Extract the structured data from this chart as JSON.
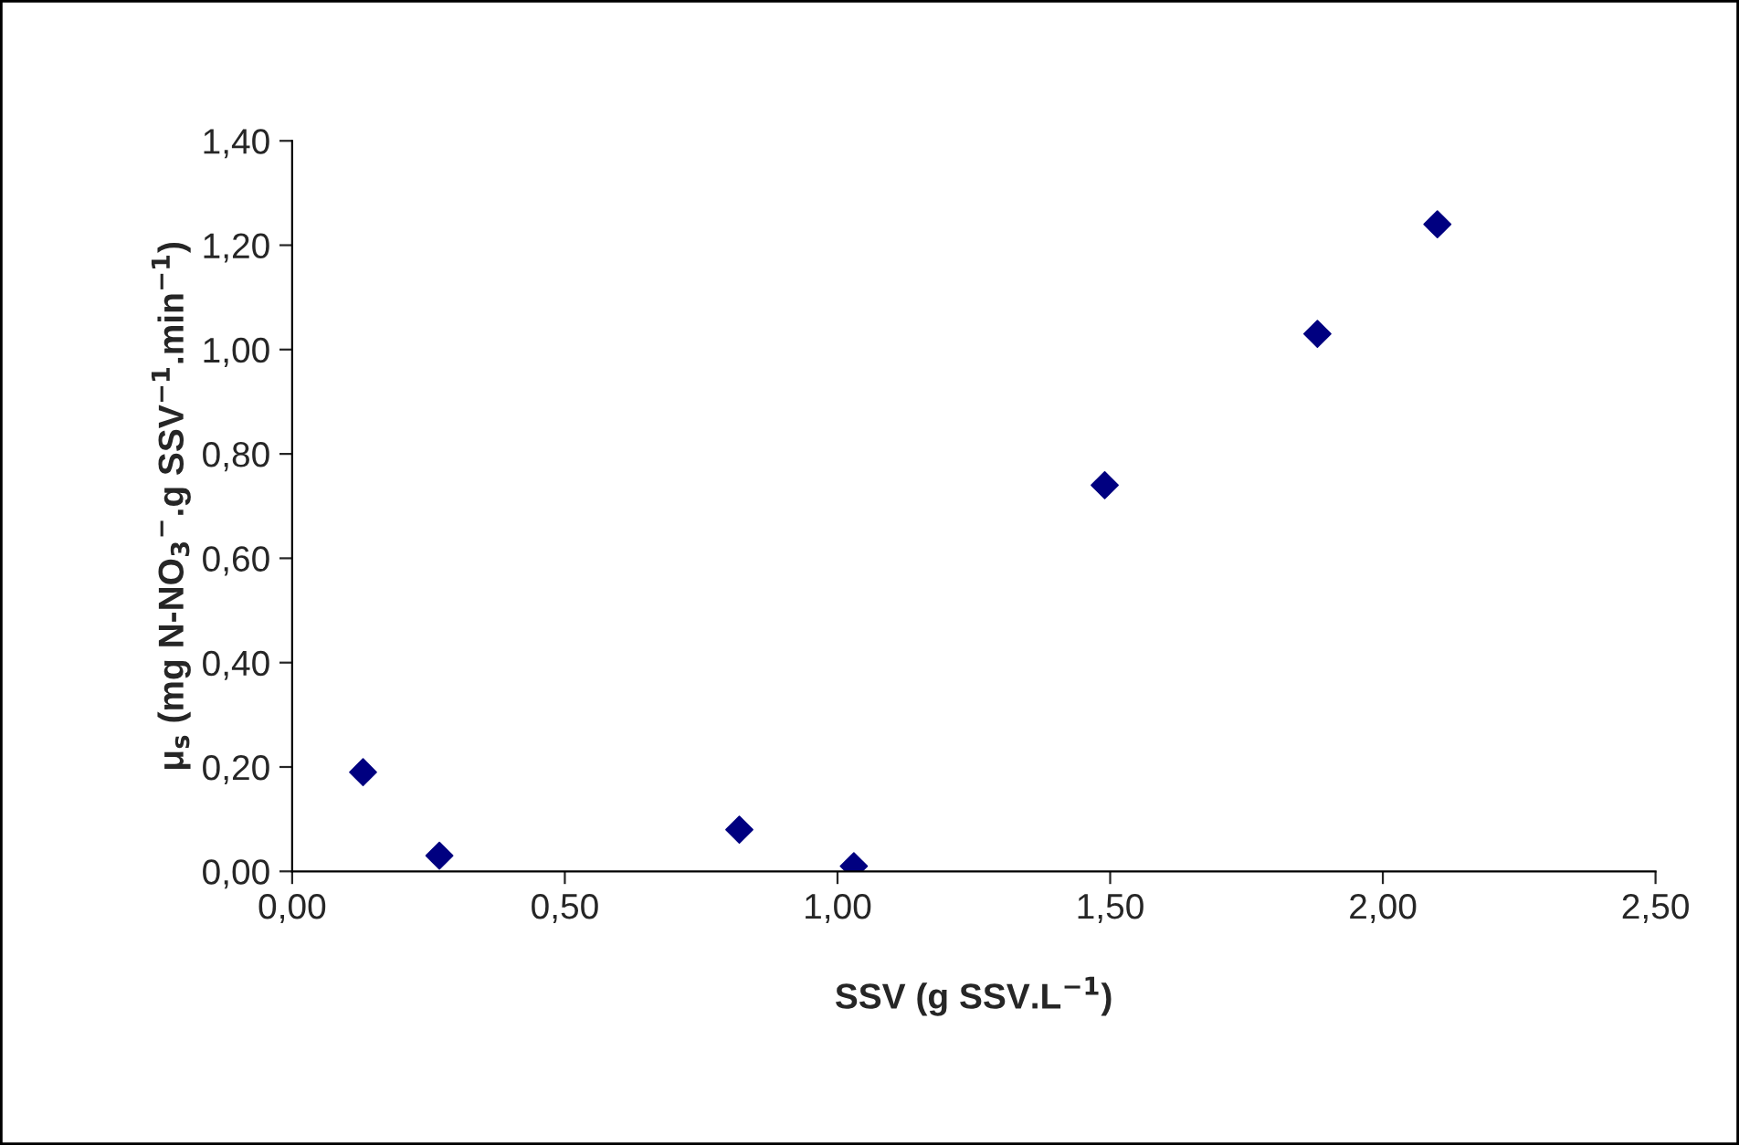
{
  "chart_data": {
    "type": "scatter",
    "xlabel": "SSV (g SSV.L$^{−1}$)",
    "ylabel": "μ$_{s}$ (mg N-NO$_{3}$$^{−}$.g SSV$^{−1}$.min$^{−1}$)",
    "x": [
      0.13,
      0.27,
      0.82,
      1.03,
      1.49,
      1.88,
      2.1
    ],
    "series": [
      {
        "color": "#000080",
        "values": [
          0.19,
          0.03,
          0.08,
          0.01,
          0.74,
          1.03,
          1.24
        ]
      }
    ],
    "marker": "diamond",
    "grid": false,
    "legend": false,
    "xlim": [
      0,
      2.5
    ],
    "ylim": [
      0,
      1.4
    ],
    "xticks": [
      {
        "value": 0,
        "label": "0,00"
      },
      {
        "value": 0.5,
        "label": "0,50"
      },
      {
        "value": 1.0,
        "label": "1,00"
      },
      {
        "value": 1.5,
        "label": "1,50"
      },
      {
        "value": 2.0,
        "label": "2,00"
      },
      {
        "value": 2.5,
        "label": "2,50"
      }
    ],
    "yticks": [
      {
        "value": 0,
        "label": "0,00"
      },
      {
        "value": 0.2,
        "label": "0,20"
      },
      {
        "value": 0.4,
        "label": "0,40"
      },
      {
        "value": 0.6,
        "label": "0,60"
      },
      {
        "value": 0.8,
        "label": "0,80"
      },
      {
        "value": 1.0,
        "label": "1,00"
      },
      {
        "value": 1.2,
        "label": "1,20"
      },
      {
        "value": 1.4,
        "label": "1,40"
      }
    ]
  }
}
